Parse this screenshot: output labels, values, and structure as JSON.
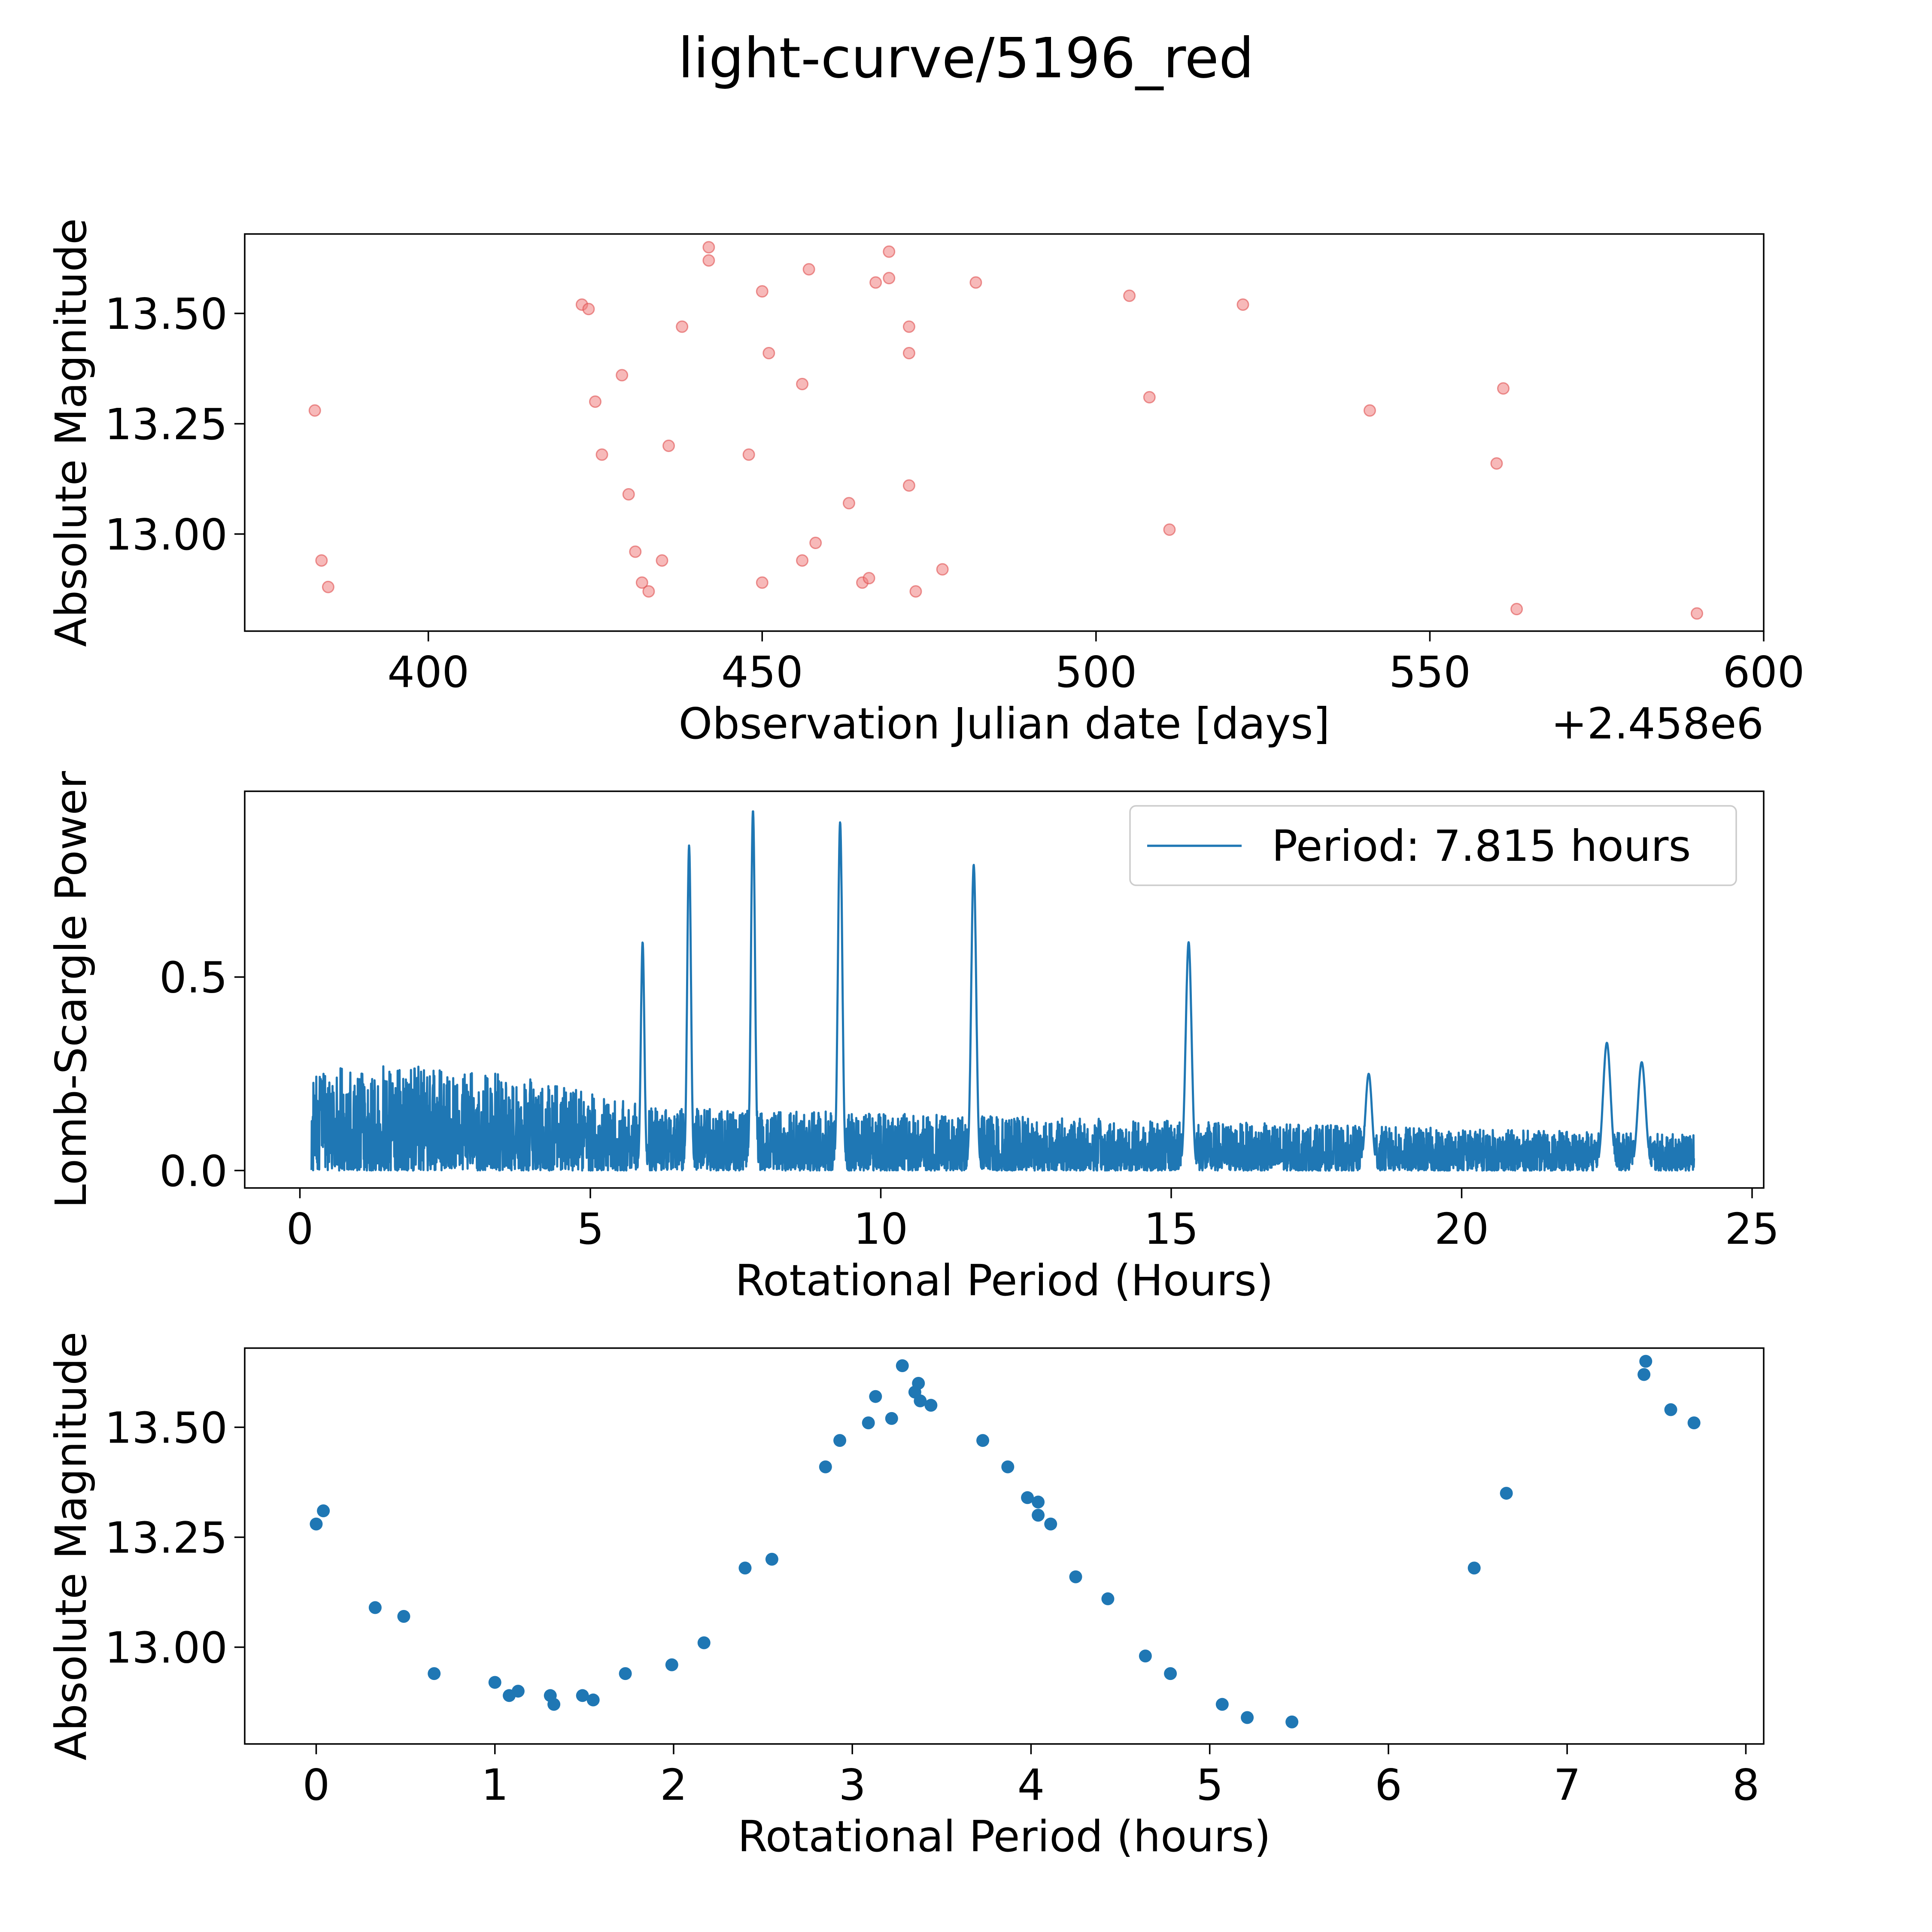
{
  "title": "light-curve/5196_red",
  "colors": {
    "scatter_red": "#f08080",
    "blue": "#1f77b4"
  },
  "chart_data": [
    {
      "type": "scatter",
      "title": "",
      "xlabel": "Observation Julian date [days]",
      "ylabel": "Absolute Magnitude",
      "offset_label": "+2.458e6",
      "xlim": [
        372.5,
        600
      ],
      "ylim": [
        12.78,
        13.68
      ],
      "xticks": [
        400,
        450,
        500,
        550,
        600
      ],
      "yticks": [
        13.0,
        13.25,
        13.5
      ],
      "xtick_labels": [
        "400",
        "450",
        "500",
        "550",
        "600"
      ],
      "ytick_labels": [
        "13.00",
        "13.25",
        "13.50"
      ],
      "color": "#f08080",
      "points": [
        [
          383,
          13.28
        ],
        [
          384,
          12.94
        ],
        [
          385,
          12.88
        ],
        [
          423,
          13.52
        ],
        [
          424,
          13.51
        ],
        [
          425,
          13.3
        ],
        [
          426,
          13.18
        ],
        [
          429,
          13.36
        ],
        [
          430,
          13.09
        ],
        [
          431,
          12.96
        ],
        [
          432,
          12.89
        ],
        [
          433,
          12.87
        ],
        [
          435,
          12.94
        ],
        [
          436,
          13.2
        ],
        [
          438,
          13.47
        ],
        [
          442,
          13.65
        ],
        [
          442,
          13.62
        ],
        [
          448,
          13.18
        ],
        [
          450,
          13.55
        ],
        [
          450,
          12.89
        ],
        [
          451,
          13.41
        ],
        [
          456,
          13.34
        ],
        [
          456,
          12.94
        ],
        [
          457,
          13.6
        ],
        [
          458,
          12.98
        ],
        [
          463,
          13.07
        ],
        [
          465,
          12.89
        ],
        [
          466,
          12.9
        ],
        [
          467,
          13.57
        ],
        [
          469,
          13.58
        ],
        [
          469,
          13.64
        ],
        [
          472,
          13.47
        ],
        [
          472,
          13.41
        ],
        [
          472,
          13.11
        ],
        [
          473,
          12.87
        ],
        [
          477,
          12.92
        ],
        [
          482,
          13.57
        ],
        [
          505,
          13.54
        ],
        [
          508,
          13.31
        ],
        [
          511,
          13.01
        ],
        [
          522,
          13.52
        ],
        [
          541,
          13.28
        ],
        [
          560,
          13.16
        ],
        [
          561,
          13.33
        ],
        [
          563,
          12.83
        ],
        [
          590,
          12.82
        ]
      ]
    },
    {
      "type": "line",
      "title": "",
      "xlabel": "Rotational Period (Hours)",
      "ylabel": "Lomb-Scargle Power",
      "xlim": [
        -0.95,
        25.2
      ],
      "ylim": [
        -0.045,
        0.98
      ],
      "xticks": [
        0,
        5,
        10,
        15,
        20,
        25
      ],
      "yticks": [
        0.0,
        0.5
      ],
      "xtick_labels": [
        "0",
        "5",
        "10",
        "15",
        "20",
        "25"
      ],
      "ytick_labels": [
        "0.0",
        "0.5"
      ],
      "color": "#1f77b4",
      "legend": {
        "label": "Period: 7.815 hours",
        "position": "top-right"
      },
      "x_range": [
        0.2,
        24.0
      ],
      "peaks": [
        {
          "x": 5.9,
          "y": 0.59
        },
        {
          "x": 6.7,
          "y": 0.84
        },
        {
          "x": 7.8,
          "y": 0.93
        },
        {
          "x": 9.3,
          "y": 0.9
        },
        {
          "x": 11.6,
          "y": 0.79
        },
        {
          "x": 15.3,
          "y": 0.59
        },
        {
          "x": 22.5,
          "y": 0.33
        },
        {
          "x": 23.1,
          "y": 0.28
        },
        {
          "x": 18.4,
          "y": 0.25
        }
      ]
    },
    {
      "type": "scatter",
      "title": "",
      "xlabel": "Rotational Period (hours)",
      "ylabel": "Absolute Magnitude",
      "xlim": [
        -0.4,
        8.1
      ],
      "ylim": [
        12.78,
        13.68
      ],
      "xticks": [
        0,
        1,
        2,
        3,
        4,
        5,
        6,
        7,
        8
      ],
      "yticks": [
        13.0,
        13.25,
        13.5
      ],
      "xtick_labels": [
        "0",
        "1",
        "2",
        "3",
        "4",
        "5",
        "6",
        "7",
        "8"
      ],
      "ytick_labels": [
        "13.00",
        "13.25",
        "13.50"
      ],
      "color": "#1f77b4",
      "points": [
        [
          0.0,
          13.28
        ],
        [
          0.04,
          13.31
        ],
        [
          0.33,
          13.09
        ],
        [
          0.49,
          13.07
        ],
        [
          0.66,
          12.94
        ],
        [
          1.0,
          12.92
        ],
        [
          1.08,
          12.89
        ],
        [
          1.13,
          12.9
        ],
        [
          1.31,
          12.89
        ],
        [
          1.33,
          12.87
        ],
        [
          1.49,
          12.89
        ],
        [
          1.55,
          12.88
        ],
        [
          1.73,
          12.94
        ],
        [
          1.99,
          12.96
        ],
        [
          2.17,
          13.01
        ],
        [
          2.4,
          13.18
        ],
        [
          2.55,
          13.2
        ],
        [
          2.85,
          13.41
        ],
        [
          2.93,
          13.47
        ],
        [
          3.09,
          13.51
        ],
        [
          3.13,
          13.57
        ],
        [
          3.22,
          13.52
        ],
        [
          3.28,
          13.64
        ],
        [
          3.35,
          13.58
        ],
        [
          3.37,
          13.6
        ],
        [
          3.38,
          13.56
        ],
        [
          3.44,
          13.55
        ],
        [
          3.73,
          13.47
        ],
        [
          3.87,
          13.41
        ],
        [
          3.98,
          13.34
        ],
        [
          4.04,
          13.33
        ],
        [
          4.04,
          13.3
        ],
        [
          4.11,
          13.28
        ],
        [
          4.25,
          13.16
        ],
        [
          4.43,
          13.11
        ],
        [
          4.64,
          12.98
        ],
        [
          4.78,
          12.94
        ],
        [
          5.07,
          12.87
        ],
        [
          5.21,
          12.84
        ],
        [
          5.46,
          12.83
        ],
        [
          6.48,
          13.18
        ],
        [
          6.66,
          13.35
        ],
        [
          7.43,
          13.62
        ],
        [
          7.44,
          13.65
        ],
        [
          7.58,
          13.54
        ],
        [
          7.71,
          13.51
        ]
      ]
    }
  ]
}
